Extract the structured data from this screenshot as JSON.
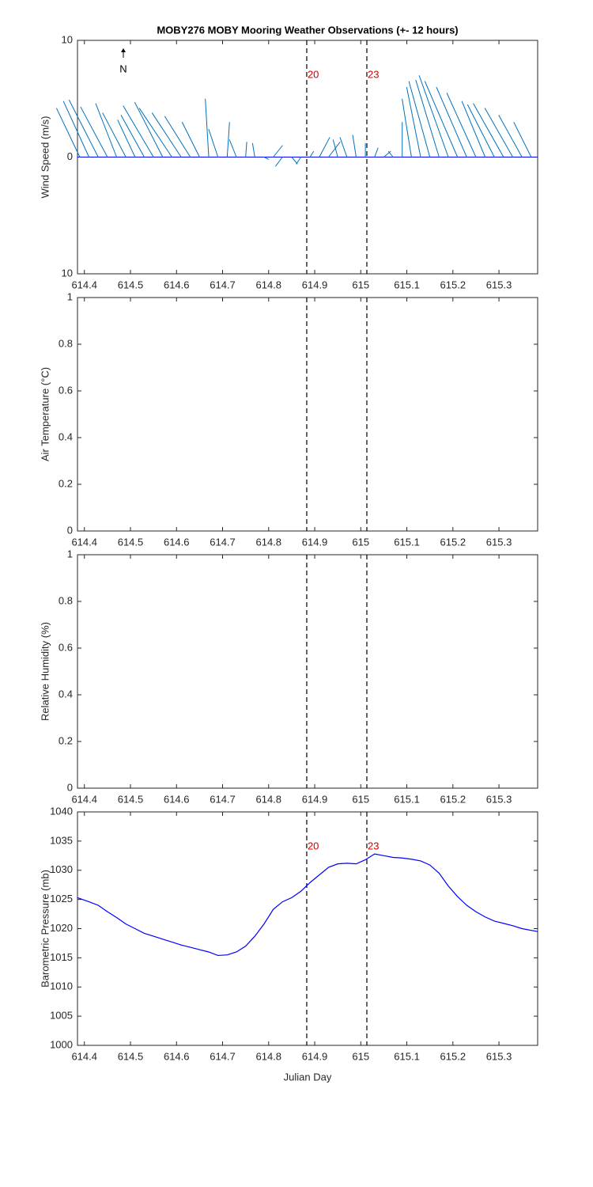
{
  "chart_data": [
    {
      "type": "stick",
      "title": "MOBY276 MOBY Mooring Weather Observations (+- 12 hours)",
      "ylabel": "Wind Speed (m/s)",
      "north_label": "N",
      "color": "#0072bd",
      "x": [
        614.39,
        614.41,
        614.43,
        614.45,
        614.47,
        614.49,
        614.51,
        614.53,
        614.55,
        614.57,
        614.59,
        614.61,
        614.63,
        614.65,
        614.67,
        614.69,
        614.71,
        614.73,
        614.75,
        614.77,
        614.79,
        614.81,
        614.83,
        614.85,
        614.87,
        614.89,
        614.91,
        614.93,
        614.95,
        614.97,
        614.99,
        615.01,
        615.03,
        615.05,
        615.07,
        615.09,
        615.11,
        615.13,
        615.15,
        615.17,
        615.19,
        615.21,
        615.23,
        615.25,
        615.27,
        615.29,
        615.31,
        615.33,
        615.35,
        615.37
      ],
      "u": [
        -2.0,
        -2.2,
        -2.5,
        -2.3,
        -1.8,
        -2.0,
        -1.5,
        -2.0,
        -2.6,
        -2.4,
        -2.8,
        -2.5,
        -2.2,
        -1.5,
        -0.3,
        -0.8,
        0.2,
        -0.6,
        0.1,
        -0.2,
        0.4,
        0.8,
        -0.6,
        0.5,
        -0.4,
        0.3,
        0.9,
        1.0,
        -0.4,
        -0.6,
        -0.3,
        0.0,
        0.3,
        0.6,
        -0.4,
        0.0,
        -0.8,
        -1.2,
        -1.8,
        -2.0,
        -2.5,
        -2.8,
        -2.6,
        -2.5,
        -2.0,
        -2.3,
        -2.6,
        -2.4,
        -2.0,
        -1.5
      ],
      "v": [
        4.2,
        4.8,
        4.9,
        4.3,
        4.6,
        3.8,
        3.2,
        3.6,
        4.4,
        4.7,
        4.2,
        3.8,
        3.5,
        3.0,
        5.0,
        2.4,
        3.0,
        1.5,
        1.3,
        1.2,
        -0.2,
        1.0,
        -0.8,
        -0.6,
        -0.6,
        0.5,
        1.7,
        1.3,
        1.5,
        1.7,
        1.9,
        1.2,
        0.8,
        0.5,
        0.5,
        3.0,
        5.0,
        6.0,
        6.5,
        6.6,
        7.0,
        6.5,
        6.0,
        5.5,
        4.8,
        4.5,
        4.6,
        4.2,
        3.6,
        3.0
      ],
      "xlim": [
        614.385,
        615.384
      ],
      "xticks": [
        614.4,
        614.5,
        614.6,
        614.7,
        614.8,
        614.9,
        615,
        615.1,
        615.2,
        615.3
      ],
      "ylim": [
        -10,
        10
      ],
      "yticks": [
        {
          "value": -10,
          "label": "10"
        },
        0,
        10
      ],
      "markers": [
        {
          "x": 614.8827,
          "label": "20"
        },
        {
          "x": 615.0132,
          "label": "23"
        }
      ]
    },
    {
      "type": "empty",
      "ylabel": "Air Temperature (°C)",
      "xlim": [
        614.385,
        615.384
      ],
      "xticks": [
        614.4,
        614.5,
        614.6,
        614.7,
        614.8,
        614.9,
        615,
        615.1,
        615.2,
        615.3
      ],
      "ylim": [
        0,
        1
      ],
      "yticks": [
        0,
        0.2,
        0.4,
        0.6,
        0.8,
        1
      ],
      "markers": [
        {
          "x": 614.8827
        },
        {
          "x": 615.0132
        }
      ]
    },
    {
      "type": "empty",
      "ylabel": "Relative Humidity (%)",
      "xlim": [
        614.385,
        615.384
      ],
      "xticks": [
        614.4,
        614.5,
        614.6,
        614.7,
        614.8,
        614.9,
        615,
        615.1,
        615.2,
        615.3
      ],
      "ylim": [
        0,
        1
      ],
      "yticks": [
        0,
        0.2,
        0.4,
        0.6,
        0.8,
        1
      ],
      "markers": [
        {
          "x": 614.8827
        },
        {
          "x": 615.0132
        }
      ]
    },
    {
      "type": "line",
      "ylabel": "Barometric Pressure (mb)",
      "xlabel": "Julian Day",
      "color": "#0000ff",
      "x": [
        614.385,
        614.41,
        614.43,
        614.45,
        614.47,
        614.49,
        614.51,
        614.53,
        614.55,
        614.57,
        614.59,
        614.61,
        614.63,
        614.65,
        614.67,
        614.69,
        614.71,
        614.73,
        614.75,
        614.77,
        614.79,
        614.81,
        614.83,
        614.85,
        614.87,
        614.89,
        614.91,
        614.93,
        614.95,
        614.97,
        614.99,
        615.01,
        615.03,
        615.05,
        615.07,
        615.09,
        615.11,
        615.13,
        615.15,
        615.17,
        615.19,
        615.21,
        615.23,
        615.25,
        615.27,
        615.29,
        615.31,
        615.33,
        615.35,
        615.384
      ],
      "values": [
        1025.3,
        1024.6,
        1024.0,
        1022.9,
        1021.9,
        1020.8,
        1020.0,
        1019.2,
        1018.7,
        1018.2,
        1017.7,
        1017.2,
        1016.8,
        1016.4,
        1016.0,
        1015.4,
        1015.5,
        1016.0,
        1017.0,
        1018.7,
        1020.8,
        1023.3,
        1024.6,
        1025.3,
        1026.4,
        1027.9,
        1029.2,
        1030.5,
        1031.1,
        1031.2,
        1031.1,
        1031.8,
        1032.8,
        1032.5,
        1032.2,
        1032.1,
        1031.9,
        1031.6,
        1030.9,
        1029.5,
        1027.3,
        1025.5,
        1024.0,
        1022.9,
        1022.0,
        1021.3,
        1020.9,
        1020.5,
        1020.0,
        1019.5
      ],
      "xlim": [
        614.385,
        615.384
      ],
      "xticks": [
        614.4,
        614.5,
        614.6,
        614.7,
        614.8,
        614.9,
        615,
        615.1,
        615.2,
        615.3
      ],
      "ylim": [
        1000,
        1040
      ],
      "yticks": [
        1000,
        1005,
        1010,
        1015,
        1020,
        1025,
        1030,
        1035,
        1040
      ],
      "markers": [
        {
          "x": 614.8827,
          "label": "20"
        },
        {
          "x": 615.0132,
          "label": "23"
        }
      ]
    }
  ]
}
